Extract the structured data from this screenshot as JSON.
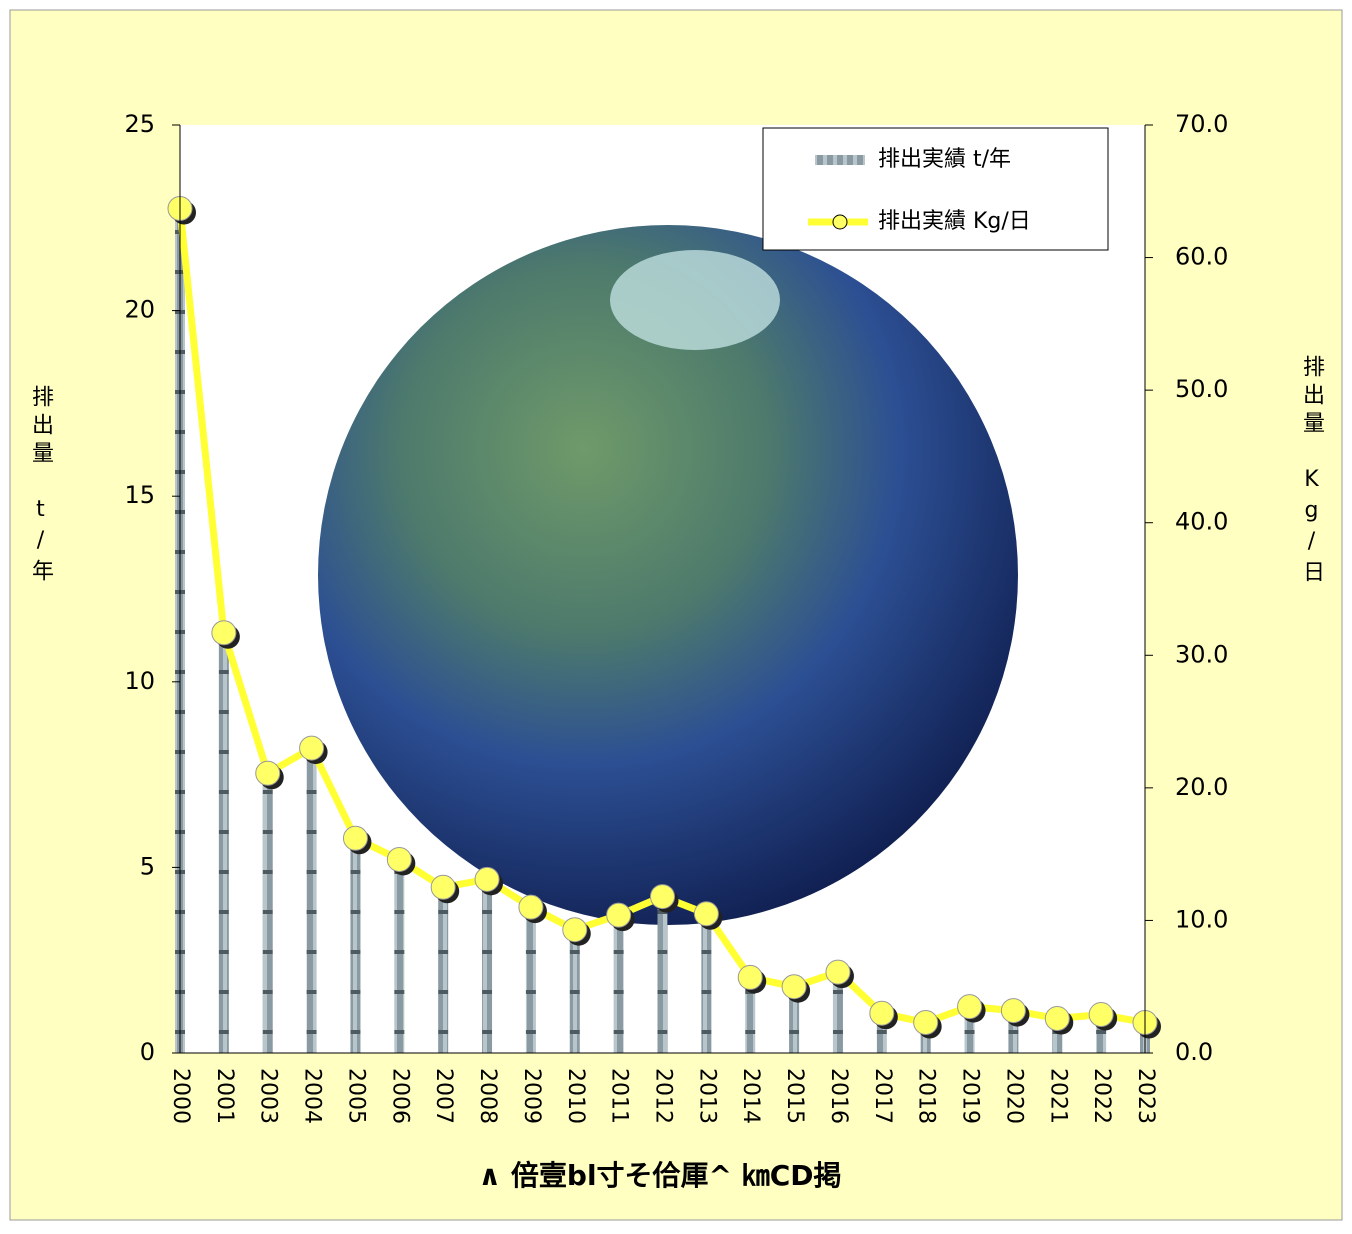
{
  "chart_data": {
    "type": "bar",
    "categories": [
      "2000",
      "2001",
      "2003",
      "2004",
      "2005",
      "2006",
      "2007",
      "2008",
      "2009",
      "2010",
      "2011",
      "2012",
      "2013",
      "2014",
      "2015",
      "2016",
      "2017",
      "2018",
      "2019",
      "2020",
      "2021",
      "2022",
      "2023"
    ],
    "series": [
      {
        "name": "排出実績 t/年",
        "type": "bar",
        "color": "#8a9aa2",
        "values": [
          22.8,
          11.4,
          7.5,
          8.2,
          5.8,
          5.3,
          4.6,
          4.8,
          4.0,
          3.4,
          3.8,
          4.3,
          3.8,
          2.1,
          1.8,
          2.2,
          1.1,
          0.8,
          1.3,
          1.2,
          0.9,
          1.0,
          0.8
        ]
      },
      {
        "name": "排出実績 Kg/日",
        "type": "line",
        "axis": "y2",
        "color": "#ffff33",
        "values": [
          63.7,
          31.7,
          21.1,
          23.0,
          16.2,
          14.6,
          12.5,
          13.1,
          11.0,
          9.3,
          10.4,
          11.8,
          10.5,
          5.7,
          5.0,
          6.1,
          3.0,
          2.3,
          3.5,
          3.2,
          2.6,
          2.9,
          2.3
        ]
      }
    ],
    "ylabel": "排出量　t/年",
    "y2label": "排出量　Kg/日",
    "xlabel": "∧ 倍壹bl寸そ佮厙^ ㎞ⅭⅮ掲",
    "ylim": [
      0,
      25
    ],
    "yticks": [
      0,
      5,
      10,
      15,
      20,
      25
    ],
    "y2lim": [
      0,
      70
    ],
    "y2ticks": [
      {
        "value": 0,
        "label": "0.0"
      },
      {
        "value": 10,
        "label": "10.0"
      },
      {
        "value": 20,
        "label": "20.0"
      },
      {
        "value": 30,
        "label": "30.0"
      },
      {
        "value": 40,
        "label": "40.0"
      },
      {
        "value": 50,
        "label": "50.0"
      },
      {
        "value": 60,
        "label": "60.0"
      },
      {
        "value": 70,
        "label": "70.0"
      }
    ],
    "legend": "upper right"
  }
}
